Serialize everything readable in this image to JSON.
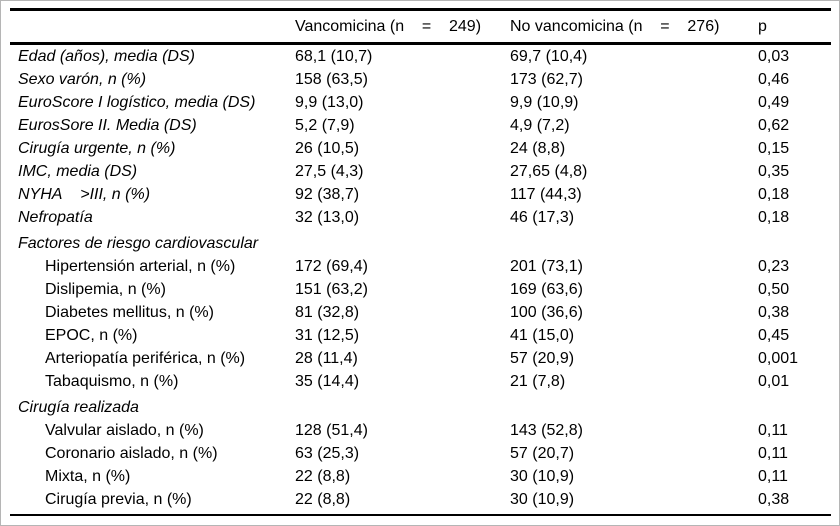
{
  "frame": {
    "border_color": "#b5b5b5",
    "rule_color": "#000000"
  },
  "table": {
    "header": {
      "empty": "",
      "group1": "Vancomicina (n    =    249)",
      "group2": "No vancomicina (n    =    276)",
      "p": "p"
    },
    "rows": [
      {
        "type": "main",
        "label": "Edad (años), media (DS)",
        "v1": "68,1 (10,7)",
        "v2": "69,7 (10,4)",
        "p": "0,03"
      },
      {
        "type": "main",
        "label": "Sexo varón, n (%)",
        "v1": "158 (63,5)",
        "v2": "173 (62,7)",
        "p": "0,46"
      },
      {
        "type": "main",
        "label": "EuroScore I logístico, media (DS)",
        "v1": "9,9 (13,0)",
        "v2": "9,9 (10,9)",
        "p": "0,49"
      },
      {
        "type": "main",
        "label": "EurosSore II. Media (DS)",
        "v1": "5,2 (7,9)",
        "v2": "4,9 (7,2)",
        "p": "0,62"
      },
      {
        "type": "main",
        "label": "Cirugía urgente, n (%)",
        "v1": "26 (10,5)",
        "v2": "24 (8,8)",
        "p": "0,15"
      },
      {
        "type": "main",
        "label": "IMC, media (DS)",
        "v1": "27,5 (4,3)",
        "v2": "27,65 (4,8)",
        "p": "0,35"
      },
      {
        "type": "main",
        "label": "NYHA    >III, n (%)",
        "v1": "92 (38,7)",
        "v2": "117 (44,3)",
        "p": "0,18"
      },
      {
        "type": "main",
        "label": "Nefropatía",
        "v1": "32 (13,0)",
        "v2": "46 (17,3)",
        "p": "0,18"
      },
      {
        "type": "section",
        "label": "Factores de riesgo cardiovascular",
        "v1": "",
        "v2": "",
        "p": ""
      },
      {
        "type": "sub",
        "label": "Hipertensión arterial, n (%)",
        "v1": "172 (69,4)",
        "v2": "201 (73,1)",
        "p": "0,23"
      },
      {
        "type": "sub",
        "label": "Dislipemia, n (%)",
        "v1": "151 (63,2)",
        "v2": "169 (63,6)",
        "p": "0,50"
      },
      {
        "type": "sub",
        "label": "Diabetes mellitus, n (%)",
        "v1": "81 (32,8)",
        "v2": "100 (36,6)",
        "p": "0,38"
      },
      {
        "type": "sub",
        "label": "EPOC, n (%)",
        "v1": "31 (12,5)",
        "v2": "41 (15,0)",
        "p": "0,45"
      },
      {
        "type": "sub",
        "label": "Arteriopatía periférica, n (%)",
        "v1": "28 (11,4)",
        "v2": "57 (20,9)",
        "p": "0,001"
      },
      {
        "type": "sub",
        "label": "Tabaquismo, n (%)",
        "v1": "35 (14,4)",
        "v2": "21 (7,8)",
        "p": "0,01"
      },
      {
        "type": "section",
        "label": "Cirugía realizada",
        "v1": "",
        "v2": "",
        "p": ""
      },
      {
        "type": "sub",
        "label": "Valvular aislado, n (%)",
        "v1": "128 (51,4)",
        "v2": "143 (52,8)",
        "p": "0,11"
      },
      {
        "type": "sub",
        "label": "Coronario aislado, n (%)",
        "v1": "63 (25,3)",
        "v2": "57 (20,7)",
        "p": "0,11"
      },
      {
        "type": "sub",
        "label": "Mixta, n (%)",
        "v1": "22 (8,8)",
        "v2": "30 (10,9)",
        "p": "0,11"
      },
      {
        "type": "sub",
        "label": "Cirugía previa, n (%)",
        "v1": "22 (8,8)",
        "v2": "30 (10,9)",
        "p": "0,38"
      }
    ]
  }
}
